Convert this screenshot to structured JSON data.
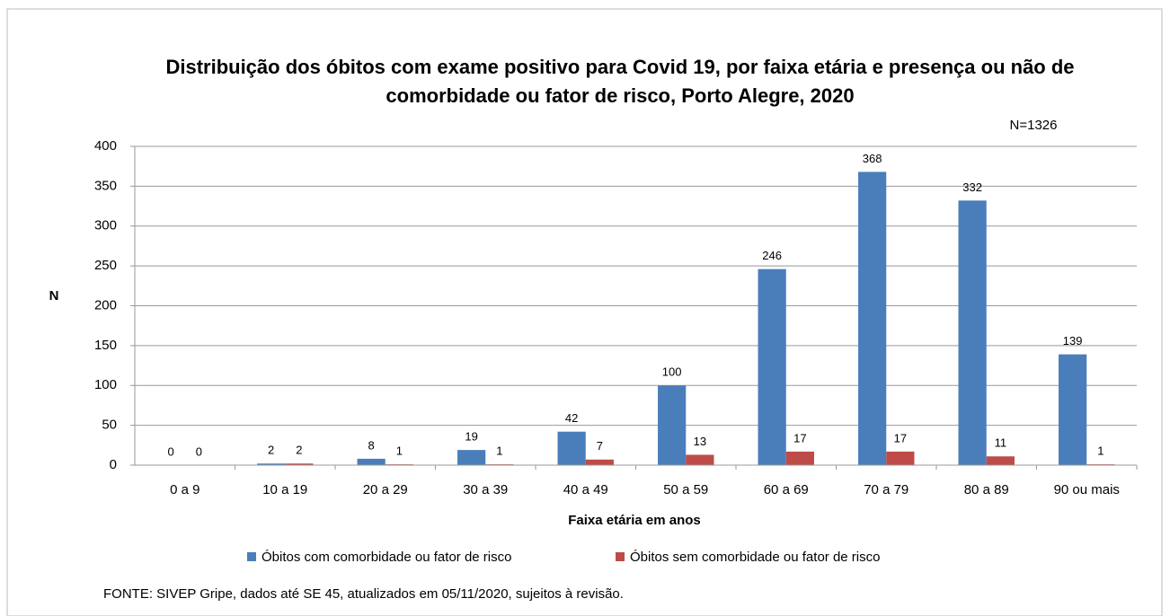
{
  "chart_data": {
    "type": "bar",
    "title": "Distribuição dos óbitos com exame positivo para Covid 19, por faixa etária e presença ou não de comorbidade ou fator de risco, Porto Alegre, 2020",
    "annotation": "N=1326",
    "y_label": "N",
    "x_label": "Faixa etária em anos",
    "source": "FONTE: SIVEP Gripe, dados até SE 45, atualizados em 05/11/2020, sujeitos à revisão.",
    "categories": [
      "0 a 9",
      "10 a 19",
      "20 a 29",
      "30 a 39",
      "40 a 49",
      "50 a 59",
      "60 a 69",
      "70 a 79",
      "80 a 89",
      "90 ou mais"
    ],
    "series": [
      {
        "name": "Óbitos com comorbidade ou fator de risco",
        "color": "#4a7ebb",
        "values": [
          0,
          2,
          8,
          19,
          42,
          100,
          246,
          368,
          332,
          139
        ]
      },
      {
        "name": "Óbitos sem comorbidade ou fator de risco",
        "color": "#be4b48",
        "values": [
          0,
          2,
          1,
          1,
          7,
          13,
          17,
          17,
          11,
          1
        ]
      }
    ],
    "ylim": [
      0,
      400
    ],
    "yticks": [
      0,
      50,
      100,
      150,
      200,
      250,
      300,
      350,
      400
    ],
    "grid": true
  }
}
